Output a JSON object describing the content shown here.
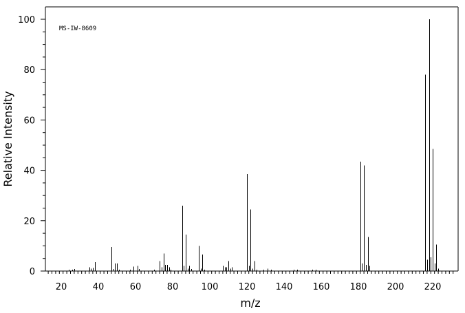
{
  "chart_data": {
    "type": "bar",
    "title": "MS-IW-8609",
    "xlabel": "m/z",
    "ylabel": "Relative Intensity",
    "xlim": [
      10,
      232
    ],
    "ylim": [
      0,
      100
    ],
    "x_ticks": [
      20,
      40,
      60,
      80,
      100,
      120,
      140,
      160,
      180,
      200,
      220
    ],
    "y_ticks": [
      0,
      20,
      40,
      60,
      80,
      100
    ],
    "x_tick_labels": [
      "20",
      "40",
      "60",
      "80",
      "100",
      "120",
      "140",
      "160",
      "180",
      "200",
      "220"
    ],
    "y_tick_labels": [
      "0",
      "20",
      "40",
      "60",
      "80",
      "100"
    ],
    "grid": false,
    "peaks": [
      {
        "x": 24,
        "y": 0.5
      },
      {
        "x": 26,
        "y": 0.6
      },
      {
        "x": 27,
        "y": 0.8
      },
      {
        "x": 35,
        "y": 1.5
      },
      {
        "x": 36,
        "y": 1.0
      },
      {
        "x": 37,
        "y": 1.2
      },
      {
        "x": 38,
        "y": 3.5
      },
      {
        "x": 47,
        "y": 9.5
      },
      {
        "x": 48,
        "y": 0.8
      },
      {
        "x": 49,
        "y": 3.0
      },
      {
        "x": 50,
        "y": 3.0
      },
      {
        "x": 51,
        "y": 0.5
      },
      {
        "x": 57,
        "y": 0.5
      },
      {
        "x": 59,
        "y": 1.8
      },
      {
        "x": 61,
        "y": 2.0
      },
      {
        "x": 62,
        "y": 0.8
      },
      {
        "x": 70,
        "y": 0.6
      },
      {
        "x": 73,
        "y": 4.0
      },
      {
        "x": 74,
        "y": 1.5
      },
      {
        "x": 75,
        "y": 7.0
      },
      {
        "x": 76,
        "y": 2.5
      },
      {
        "x": 77,
        "y": 2.5
      },
      {
        "x": 78,
        "y": 1.5
      },
      {
        "x": 79,
        "y": 0.6
      },
      {
        "x": 85,
        "y": 26.0
      },
      {
        "x": 86,
        "y": 2.0
      },
      {
        "x": 87,
        "y": 14.5
      },
      {
        "x": 88,
        "y": 1.0
      },
      {
        "x": 89,
        "y": 2.0
      },
      {
        "x": 90,
        "y": 0.8
      },
      {
        "x": 94,
        "y": 10.0
      },
      {
        "x": 95,
        "y": 1.0
      },
      {
        "x": 96,
        "y": 6.5
      },
      {
        "x": 97,
        "y": 0.6
      },
      {
        "x": 107,
        "y": 2.0
      },
      {
        "x": 108,
        "y": 1.5
      },
      {
        "x": 109,
        "y": 1.5
      },
      {
        "x": 110,
        "y": 4.0
      },
      {
        "x": 111,
        "y": 1.0
      },
      {
        "x": 112,
        "y": 1.5
      },
      {
        "x": 120,
        "y": 38.5
      },
      {
        "x": 121,
        "y": 2.0
      },
      {
        "x": 122,
        "y": 24.5
      },
      {
        "x": 123,
        "y": 1.0
      },
      {
        "x": 124,
        "y": 4.0
      },
      {
        "x": 125,
        "y": 0.6
      },
      {
        "x": 129,
        "y": 0.5
      },
      {
        "x": 131,
        "y": 1.0
      },
      {
        "x": 133,
        "y": 0.5
      },
      {
        "x": 145,
        "y": 0.6
      },
      {
        "x": 147,
        "y": 0.5
      },
      {
        "x": 155,
        "y": 0.5
      },
      {
        "x": 157,
        "y": 0.5
      },
      {
        "x": 181,
        "y": 43.5
      },
      {
        "x": 182,
        "y": 3.0
      },
      {
        "x": 183,
        "y": 42.0
      },
      {
        "x": 184,
        "y": 2.5
      },
      {
        "x": 185,
        "y": 13.5
      },
      {
        "x": 186,
        "y": 2.0
      },
      {
        "x": 216,
        "y": 78.0
      },
      {
        "x": 217,
        "y": 4.5
      },
      {
        "x": 218,
        "y": 100.0
      },
      {
        "x": 219,
        "y": 5.5
      },
      {
        "x": 220,
        "y": 48.5
      },
      {
        "x": 221,
        "y": 3.0
      },
      {
        "x": 222,
        "y": 10.5
      },
      {
        "x": 223,
        "y": 1.0
      }
    ]
  }
}
